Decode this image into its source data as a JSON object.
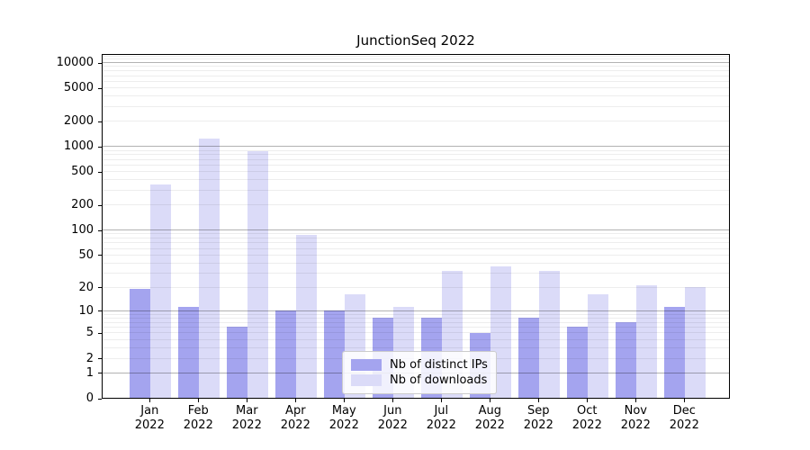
{
  "chart_data": {
    "type": "bar",
    "title": "JunctionSeq 2022",
    "x": [
      {
        "month": "Jan",
        "year": "2022"
      },
      {
        "month": "Feb",
        "year": "2022"
      },
      {
        "month": "Mar",
        "year": "2022"
      },
      {
        "month": "Apr",
        "year": "2022"
      },
      {
        "month": "May",
        "year": "2022"
      },
      {
        "month": "Jun",
        "year": "2022"
      },
      {
        "month": "Jul",
        "year": "2022"
      },
      {
        "month": "Aug",
        "year": "2022"
      },
      {
        "month": "Sep",
        "year": "2022"
      },
      {
        "month": "Oct",
        "year": "2022"
      },
      {
        "month": "Nov",
        "year": "2022"
      },
      {
        "month": "Dec",
        "year": "2022"
      }
    ],
    "series": [
      {
        "name": "Nb of distinct IPs",
        "color": "#a4a4ef",
        "values": [
          19,
          11,
          6,
          10,
          10,
          8,
          8,
          5,
          8,
          6,
          7,
          11
        ]
      },
      {
        "name": "Nb of downloads",
        "color": "#dbdbf8",
        "values": [
          345,
          1240,
          875,
          86,
          16,
          11,
          32,
          36,
          32,
          16,
          21,
          20
        ]
      }
    ],
    "y_axis": {
      "scale": "log1p",
      "tick_values": [
        0,
        1,
        2,
        5,
        10,
        20,
        50,
        100,
        200,
        500,
        1000,
        2000,
        5000,
        10000
      ],
      "range_max": 12800
    },
    "legend": {
      "position": "lower-center"
    },
    "grid": true
  }
}
